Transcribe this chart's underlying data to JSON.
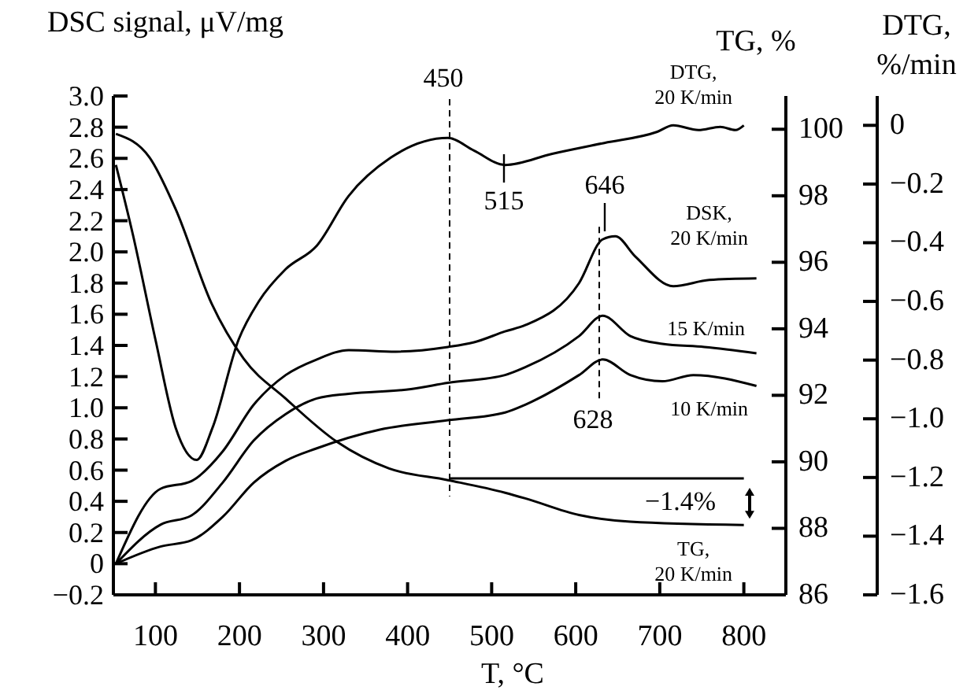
{
  "chart_data": {
    "type": "line",
    "xlabel": "T, °C",
    "ylabel": "DSC signal, μV/mg",
    "y2label": "TG, %",
    "y3label": "DTG, %/min",
    "xlim": [
      50,
      850
    ],
    "xticks": [
      100,
      200,
      300,
      400,
      500,
      600,
      700,
      800
    ],
    "ylim": [
      -0.2,
      3.0
    ],
    "yticks": [
      {
        "value": 3,
        "label": "3.0"
      },
      2.8,
      2.6,
      2.4,
      2.2,
      {
        "value": 2,
        "label": "2.0"
      },
      1.8,
      1.6,
      1.4,
      1.2,
      {
        "value": 1,
        "label": "1.0"
      },
      0.8,
      0.6,
      0.4,
      0.2,
      0,
      {
        "value": -0.2,
        "label": "−0.2"
      }
    ],
    "y2lim": [
      86,
      101
    ],
    "y2ticks": [
      86,
      88,
      90,
      92,
      94,
      96,
      98,
      100
    ],
    "y3lim": [
      -1.6,
      0.1
    ],
    "y3ticks": [
      0,
      {
        "value": -0.2,
        "label": "−0.2"
      },
      {
        "value": -0.4,
        "label": "−0.4"
      },
      {
        "value": -0.6,
        "label": "−0.6"
      },
      {
        "value": -0.8,
        "label": "−0.8"
      },
      {
        "value": -1,
        "label": "−1.0"
      },
      {
        "value": -1.2,
        "label": "−1.2"
      },
      {
        "value": -1.4,
        "label": "−1.4"
      },
      {
        "value": -1.6,
        "label": "−1.6"
      }
    ],
    "series": [
      {
        "name": "DTG, 20 K/min",
        "color": "#000000",
        "axis": "y3",
        "x": [
          53,
          73,
          100,
          124,
          149,
          168,
          199,
          223,
          255,
          292,
          330,
          380,
          448,
          479,
          516,
          572,
          634,
          697,
          716,
          746,
          772,
          790,
          800
        ],
        "values": [
          -0.135,
          -0.37,
          -0.73,
          -1.03,
          -1.14,
          -1.03,
          -0.73,
          -0.6,
          -0.49,
          -0.41,
          -0.24,
          -0.11,
          -0.043,
          -0.086,
          -0.135,
          -0.097,
          -0.06,
          -0.022,
          0,
          -0.016,
          -0.005,
          -0.016,
          0
        ]
      },
      {
        "name": "DSK, 20 K/min",
        "color": "#000000",
        "x": [
          53,
          106,
          143,
          180,
          217,
          255,
          292,
          330,
          386,
          448,
          479,
          516,
          540,
          604,
          632,
          647,
          671,
          716,
          759,
          815
        ],
        "values": [
          0,
          0.48,
          0.53,
          0.72,
          1.02,
          1.21,
          1.31,
          1.37,
          1.36,
          1.39,
          1.42,
          1.49,
          1.53,
          1.8,
          2.08,
          2.1,
          1.97,
          1.78,
          1.82,
          1.83
        ]
      },
      {
        "name": "15 K/min",
        "color": "#000000",
        "x": [
          53,
          106,
          143,
          180,
          217,
          255,
          292,
          330,
          404,
          448,
          516,
          540,
          604,
          632,
          665,
          703,
          753,
          815
        ],
        "values": [
          0,
          0.25,
          0.31,
          0.52,
          0.79,
          0.96,
          1.06,
          1.09,
          1.12,
          1.16,
          1.21,
          1.26,
          1.46,
          1.59,
          1.46,
          1.41,
          1.39,
          1.35
        ]
      },
      {
        "name": "10 K/min",
        "color": "#000000",
        "x": [
          53,
          106,
          143,
          180,
          217,
          255,
          292,
          367,
          448,
          516,
          540,
          604,
          632,
          665,
          703,
          740,
          815
        ],
        "values": [
          0,
          0.11,
          0.15,
          0.3,
          0.52,
          0.66,
          0.74,
          0.86,
          0.92,
          0.97,
          1.02,
          1.21,
          1.31,
          1.21,
          1.17,
          1.21,
          1.14
        ]
      },
      {
        "name": "TG, 20 K/min",
        "color": "#000000",
        "axis": "y2",
        "x": [
          53,
          93,
          124,
          167,
          205,
          255,
          316,
          378,
          448,
          516,
          540,
          604,
          665,
          800
        ],
        "values": [
          99.86,
          99.15,
          97.6,
          94.75,
          93.1,
          91.9,
          90.6,
          89.8,
          89.45,
          89.07,
          88.9,
          88.4,
          88.2,
          88.1
        ]
      },
      {
        "type": "line",
        "color": "#000000",
        "axis": "y2",
        "x": [
          450,
          800
        ],
        "values": [
          89.5,
          89.5
        ]
      }
    ],
    "ref_lines": [
      {
        "axis": "x",
        "value": 450,
        "label": "450",
        "line_style": "dashed"
      },
      {
        "axis": "x",
        "value": 628,
        "label": "628",
        "line_style": "dashed"
      }
    ],
    "legend": "right",
    "annotations": [
      "515",
      "646",
      "−1.4%"
    ]
  }
}
